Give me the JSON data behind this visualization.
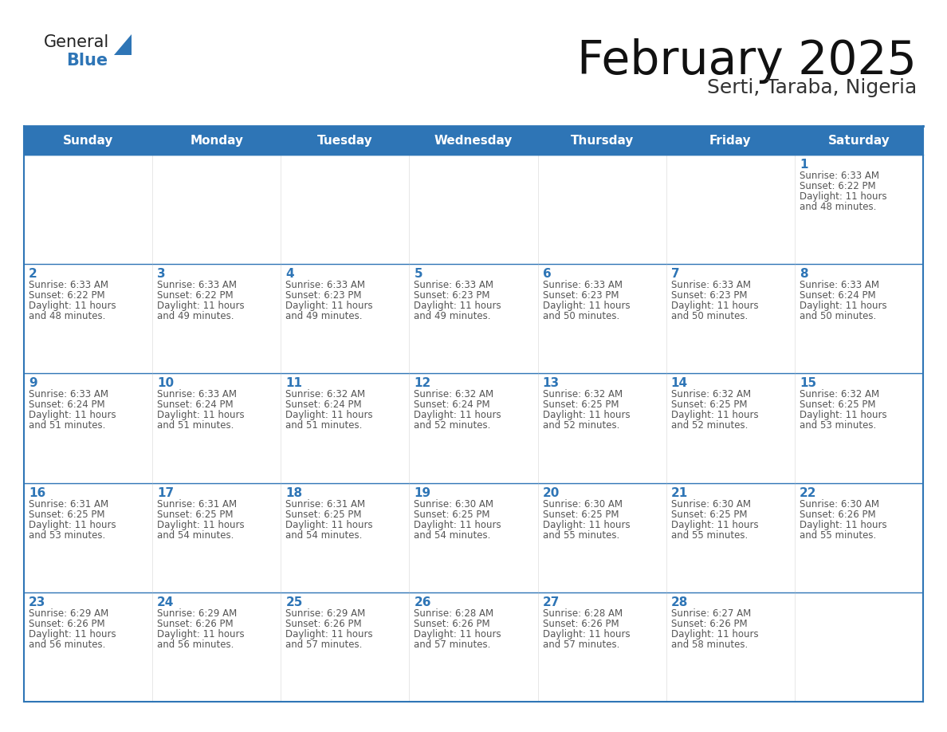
{
  "title": "February 2025",
  "subtitle": "Serti, Taraba, Nigeria",
  "header_bg_color": "#2E75B6",
  "header_text_color": "#FFFFFF",
  "cell_bg_color": "#FFFFFF",
  "border_color": "#2E75B6",
  "text_color": "#555555",
  "day_number_color": "#2E75B6",
  "days_of_week": [
    "Sunday",
    "Monday",
    "Tuesday",
    "Wednesday",
    "Thursday",
    "Friday",
    "Saturday"
  ],
  "calendar_data": [
    [
      {
        "day": null,
        "info": null
      },
      {
        "day": null,
        "info": null
      },
      {
        "day": null,
        "info": null
      },
      {
        "day": null,
        "info": null
      },
      {
        "day": null,
        "info": null
      },
      {
        "day": null,
        "info": null
      },
      {
        "day": 1,
        "info": "Sunrise: 6:33 AM\nSunset: 6:22 PM\nDaylight: 11 hours\nand 48 minutes."
      }
    ],
    [
      {
        "day": 2,
        "info": "Sunrise: 6:33 AM\nSunset: 6:22 PM\nDaylight: 11 hours\nand 48 minutes."
      },
      {
        "day": 3,
        "info": "Sunrise: 6:33 AM\nSunset: 6:22 PM\nDaylight: 11 hours\nand 49 minutes."
      },
      {
        "day": 4,
        "info": "Sunrise: 6:33 AM\nSunset: 6:23 PM\nDaylight: 11 hours\nand 49 minutes."
      },
      {
        "day": 5,
        "info": "Sunrise: 6:33 AM\nSunset: 6:23 PM\nDaylight: 11 hours\nand 49 minutes."
      },
      {
        "day": 6,
        "info": "Sunrise: 6:33 AM\nSunset: 6:23 PM\nDaylight: 11 hours\nand 50 minutes."
      },
      {
        "day": 7,
        "info": "Sunrise: 6:33 AM\nSunset: 6:23 PM\nDaylight: 11 hours\nand 50 minutes."
      },
      {
        "day": 8,
        "info": "Sunrise: 6:33 AM\nSunset: 6:24 PM\nDaylight: 11 hours\nand 50 minutes."
      }
    ],
    [
      {
        "day": 9,
        "info": "Sunrise: 6:33 AM\nSunset: 6:24 PM\nDaylight: 11 hours\nand 51 minutes."
      },
      {
        "day": 10,
        "info": "Sunrise: 6:33 AM\nSunset: 6:24 PM\nDaylight: 11 hours\nand 51 minutes."
      },
      {
        "day": 11,
        "info": "Sunrise: 6:32 AM\nSunset: 6:24 PM\nDaylight: 11 hours\nand 51 minutes."
      },
      {
        "day": 12,
        "info": "Sunrise: 6:32 AM\nSunset: 6:24 PM\nDaylight: 11 hours\nand 52 minutes."
      },
      {
        "day": 13,
        "info": "Sunrise: 6:32 AM\nSunset: 6:25 PM\nDaylight: 11 hours\nand 52 minutes."
      },
      {
        "day": 14,
        "info": "Sunrise: 6:32 AM\nSunset: 6:25 PM\nDaylight: 11 hours\nand 52 minutes."
      },
      {
        "day": 15,
        "info": "Sunrise: 6:32 AM\nSunset: 6:25 PM\nDaylight: 11 hours\nand 53 minutes."
      }
    ],
    [
      {
        "day": 16,
        "info": "Sunrise: 6:31 AM\nSunset: 6:25 PM\nDaylight: 11 hours\nand 53 minutes."
      },
      {
        "day": 17,
        "info": "Sunrise: 6:31 AM\nSunset: 6:25 PM\nDaylight: 11 hours\nand 54 minutes."
      },
      {
        "day": 18,
        "info": "Sunrise: 6:31 AM\nSunset: 6:25 PM\nDaylight: 11 hours\nand 54 minutes."
      },
      {
        "day": 19,
        "info": "Sunrise: 6:30 AM\nSunset: 6:25 PM\nDaylight: 11 hours\nand 54 minutes."
      },
      {
        "day": 20,
        "info": "Sunrise: 6:30 AM\nSunset: 6:25 PM\nDaylight: 11 hours\nand 55 minutes."
      },
      {
        "day": 21,
        "info": "Sunrise: 6:30 AM\nSunset: 6:25 PM\nDaylight: 11 hours\nand 55 minutes."
      },
      {
        "day": 22,
        "info": "Sunrise: 6:30 AM\nSunset: 6:26 PM\nDaylight: 11 hours\nand 55 minutes."
      }
    ],
    [
      {
        "day": 23,
        "info": "Sunrise: 6:29 AM\nSunset: 6:26 PM\nDaylight: 11 hours\nand 56 minutes."
      },
      {
        "day": 24,
        "info": "Sunrise: 6:29 AM\nSunset: 6:26 PM\nDaylight: 11 hours\nand 56 minutes."
      },
      {
        "day": 25,
        "info": "Sunrise: 6:29 AM\nSunset: 6:26 PM\nDaylight: 11 hours\nand 57 minutes."
      },
      {
        "day": 26,
        "info": "Sunrise: 6:28 AM\nSunset: 6:26 PM\nDaylight: 11 hours\nand 57 minutes."
      },
      {
        "day": 27,
        "info": "Sunrise: 6:28 AM\nSunset: 6:26 PM\nDaylight: 11 hours\nand 57 minutes."
      },
      {
        "day": 28,
        "info": "Sunrise: 6:27 AM\nSunset: 6:26 PM\nDaylight: 11 hours\nand 58 minutes."
      },
      {
        "day": null,
        "info": null
      }
    ]
  ],
  "logo_general_color": "#222222",
  "logo_blue_color": "#2E75B6",
  "logo_triangle_color": "#2E75B6",
  "title_fontsize": 42,
  "subtitle_fontsize": 18,
  "header_fontsize": 11,
  "day_num_fontsize": 11,
  "info_fontsize": 8.5
}
